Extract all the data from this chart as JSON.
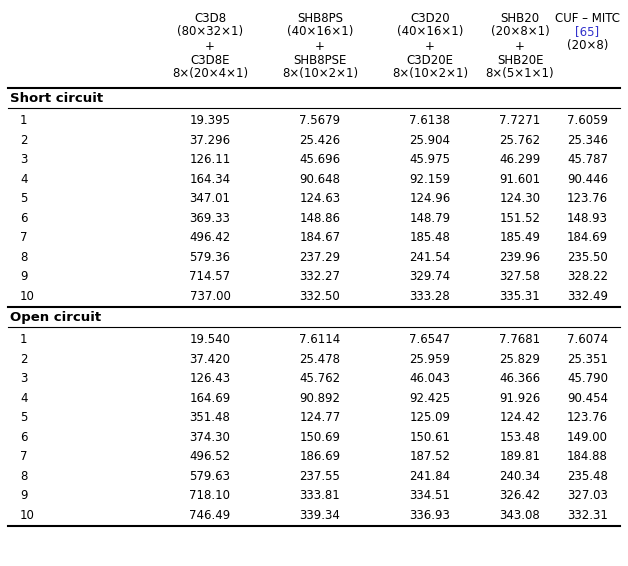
{
  "col_headers_line1": [
    "C3D8",
    "SHB8PS",
    "C3D20",
    "SHB20",
    "CUF – MITC"
  ],
  "col_headers_line2": [
    "(80×32×1)",
    "(40×16×1)",
    "(40×16×1)",
    "(20×8×1)",
    "[65]"
  ],
  "col_headers_line3": [
    "+",
    "+",
    "+",
    "+",
    "(20×8)"
  ],
  "col_headers_line4": [
    "C3D8E",
    "SHB8PSE",
    "C3D20E",
    "SHB20E",
    ""
  ],
  "col_headers_line5": [
    "8×(20×4×1)",
    "8×(10×2×1)",
    "8×(10×2×1)",
    "8×(5×1×1)",
    ""
  ],
  "row_labels": [
    "1",
    "2",
    "3",
    "4",
    "5",
    "6",
    "7",
    "8",
    "9",
    "10"
  ],
  "short_circuit": [
    [
      "19.395",
      "7.5679",
      "7.6138",
      "7.7271",
      "7.6059"
    ],
    [
      "37.296",
      "25.426",
      "25.904",
      "25.762",
      "25.346"
    ],
    [
      "126.11",
      "45.696",
      "45.975",
      "46.299",
      "45.787"
    ],
    [
      "164.34",
      "90.648",
      "92.159",
      "91.601",
      "90.446"
    ],
    [
      "347.01",
      "124.63",
      "124.96",
      "124.30",
      "123.76"
    ],
    [
      "369.33",
      "148.86",
      "148.79",
      "151.52",
      "148.93"
    ],
    [
      "496.42",
      "184.67",
      "185.48",
      "185.49",
      "184.69"
    ],
    [
      "579.36",
      "237.29",
      "241.54",
      "239.96",
      "235.50"
    ],
    [
      "714.57",
      "332.27",
      "329.74",
      "327.58",
      "328.22"
    ],
    [
      "737.00",
      "332.50",
      "333.28",
      "335.31",
      "332.49"
    ]
  ],
  "open_circuit": [
    [
      "19.540",
      "7.6114",
      "7.6547",
      "7.7681",
      "7.6074"
    ],
    [
      "37.420",
      "25.478",
      "25.959",
      "25.829",
      "25.351"
    ],
    [
      "126.43",
      "45.762",
      "46.043",
      "46.366",
      "45.790"
    ],
    [
      "164.69",
      "90.892",
      "92.425",
      "91.926",
      "90.454"
    ],
    [
      "351.48",
      "124.77",
      "125.09",
      "124.42",
      "123.76"
    ],
    [
      "374.30",
      "150.69",
      "150.61",
      "153.48",
      "149.00"
    ],
    [
      "496.52",
      "186.69",
      "187.52",
      "189.81",
      "184.88"
    ],
    [
      "579.63",
      "237.55",
      "241.84",
      "240.34",
      "235.48"
    ],
    [
      "718.10",
      "333.81",
      "334.51",
      "326.42",
      "327.03"
    ],
    [
      "746.49",
      "339.34",
      "336.93",
      "343.08",
      "332.31"
    ]
  ],
  "bg_color": "#ffffff",
  "text_color": "#000000",
  "link_color": "#3333cc",
  "figsize": [
    6.28,
    5.66
  ],
  "dpi": 100
}
